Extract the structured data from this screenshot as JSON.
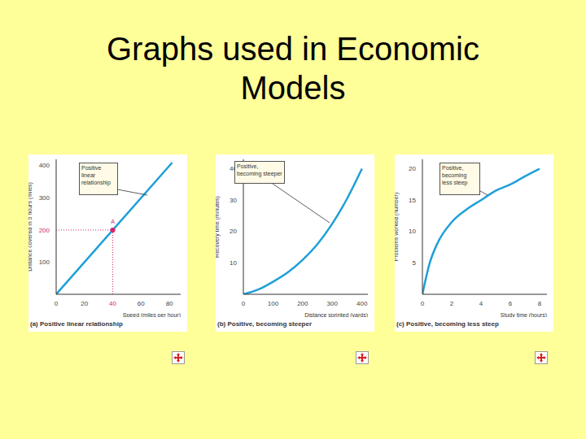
{
  "title": "Graphs used in Economic Models",
  "chart_data": [
    {
      "type": "line",
      "title": "(a) Positive linear relationship",
      "annotation": "Positive linear relationship",
      "x_label": "Speed (miles per hour)",
      "y_label": "Distance covered in 5 hours (miles)",
      "x": [
        0,
        82
      ],
      "values": [
        0,
        410
      ],
      "color": "#1e9fd8",
      "xlim": [
        0,
        88
      ],
      "xticks": [
        0,
        20,
        40,
        60,
        80
      ],
      "ylim": [
        0,
        420
      ],
      "yticks": [
        100,
        200,
        300,
        400
      ],
      "points": [
        {
          "label": "A",
          "x": 40,
          "y": 200,
          "color": "#d6246e"
        }
      ]
    },
    {
      "type": "line",
      "title": "(b) Positive, becoming steeper",
      "annotation": "Positive, becoming steeper",
      "x_label": "Distance sprinted (yards)",
      "y_label": "Recovery time (minutes)",
      "x": [
        0,
        50,
        100,
        150,
        200,
        250,
        300,
        350,
        400
      ],
      "values": [
        0,
        1.5,
        4,
        7,
        11,
        16,
        22.5,
        30.5,
        40
      ],
      "color": "#1e9fd8",
      "xlim": [
        0,
        420
      ],
      "xticks": [
        0,
        100,
        200,
        300,
        400
      ],
      "ylim": [
        0,
        43
      ],
      "yticks": [
        10,
        20,
        30,
        40
      ]
    },
    {
      "type": "line",
      "title": "(c) Positive, becoming less steep",
      "annotation": "Positive, becoming less steep",
      "x_label": "Study time (hours)",
      "y_label": "Problems worked (number)",
      "x": [
        0,
        0.5,
        1,
        2,
        3,
        4,
        5,
        6,
        7,
        8
      ],
      "values": [
        0,
        5,
        8,
        11.5,
        13.5,
        15,
        16.5,
        17.5,
        18.8,
        20
      ],
      "color": "#1e9fd8",
      "xlim": [
        0,
        8.5
      ],
      "xticks": [
        0,
        2,
        4,
        6,
        8
      ],
      "ylim": [
        0,
        21.5
      ],
      "yticks": [
        5,
        10,
        15,
        20
      ]
    }
  ]
}
